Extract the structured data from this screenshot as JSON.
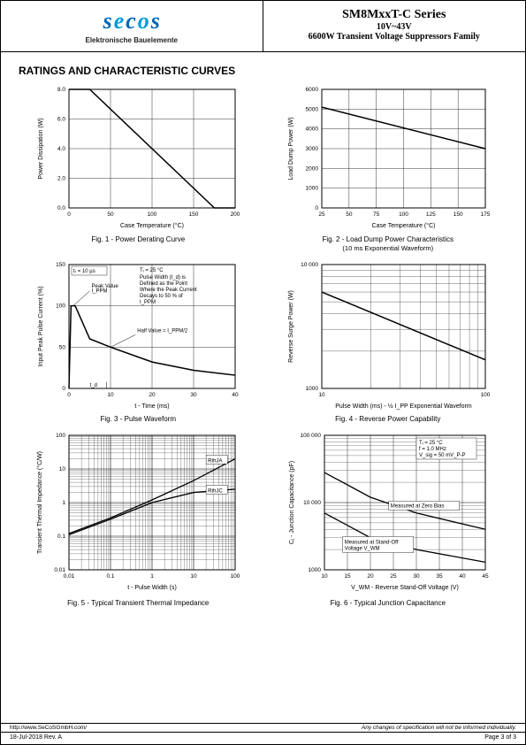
{
  "header": {
    "logo_text": "secos",
    "logo_subtitle": "Elektronische Bauelemente",
    "series_title": "SM8MxxT-C Series",
    "voltage_range": "10V~43V",
    "product_desc": "6600W Transient Voltage Suppressors Family"
  },
  "section_title": "RATINGS AND CHARACTERISTIC CURVES",
  "fig1": {
    "type": "line",
    "caption": "Fig. 1 - Power Derating Curve",
    "xlabel": "Case Temperature (°C)",
    "ylabel": "Power Dissipation (W)",
    "xlim": [
      0,
      200
    ],
    "xtick_step": 50,
    "ylim": [
      0,
      8
    ],
    "ytick_step": 2,
    "line": [
      [
        0,
        8
      ],
      [
        25,
        8
      ],
      [
        175,
        0
      ],
      [
        200,
        0
      ]
    ],
    "line_color": "#000",
    "line_width": 1.5,
    "grid_color": "#000",
    "background_color": "#fff"
  },
  "fig2": {
    "type": "line",
    "caption": "Fig. 2 - Load Dump Power Characteristics",
    "subcaption": "(10 ms Exponential Waveform)",
    "xlabel": "Case Temperature (°C)",
    "ylabel": "Load Dump Power (W)",
    "xlim": [
      25,
      175
    ],
    "xtick_step": 25,
    "ylim": [
      0,
      6000
    ],
    "ytick_step": 1000,
    "line": [
      [
        25,
        5100
      ],
      [
        175,
        3000
      ]
    ],
    "line_color": "#000",
    "line_width": 1.5,
    "grid_color": "#000"
  },
  "fig3": {
    "type": "line",
    "caption": "Fig. 3 - Pulse Waveform",
    "xlabel": "t - Time (ms)",
    "ylabel": "Input Peak Pulse Current (%)",
    "xlim": [
      0,
      40
    ],
    "xtick_step": 10,
    "ylim": [
      0,
      150
    ],
    "ytick_step": 50,
    "line": [
      [
        0,
        0
      ],
      [
        0.5,
        100
      ],
      [
        1.5,
        100
      ],
      [
        5,
        60
      ],
      [
        10,
        50
      ],
      [
        20,
        32
      ],
      [
        30,
        22
      ],
      [
        40,
        16
      ]
    ],
    "line_color": "#000",
    "line_width": 1.5,
    "annotations": {
      "tr": "tᵣ = 10 µs",
      "tj": "Tⱼ = 25 °C",
      "note": "Pulse Width (t_d) is Defined as the Point Where the Peak Current Decays to 50 % of I_PPM",
      "peak": "Peak Value I_PPM",
      "half": "Half Value = I_PPM/2",
      "td": "t_d"
    }
  },
  "fig4": {
    "type": "line",
    "caption": "Fig. 4 - Reverse Power Capability",
    "xlabel": "Pulse Width (ms) - ½ I_PP Exponential Waveform",
    "ylabel": "Reverse Surge Power (W)",
    "xlim_log": [
      10,
      100
    ],
    "ylim_log": [
      1000,
      10000
    ],
    "line": [
      [
        10,
        6000
      ],
      [
        100,
        1700
      ]
    ],
    "line_color": "#000",
    "line_width": 1.5,
    "scale": "log-log"
  },
  "fig5": {
    "type": "line",
    "caption": "Fig. 5 - Typical Transient Thermal Impedance",
    "xlabel": "t - Pulse Width (s)",
    "ylabel": "Transient Thermal Impedance (°C/W)",
    "xlim_log": [
      0.01,
      100
    ],
    "ylim_log": [
      0.01,
      100
    ],
    "scale": "log-log",
    "lines": [
      {
        "label": "RthJA",
        "data": [
          [
            0.01,
            0.12
          ],
          [
            0.1,
            0.35
          ],
          [
            1,
            1.2
          ],
          [
            10,
            4.5
          ],
          [
            100,
            20
          ]
        ]
      },
      {
        "label": "RthJC",
        "data": [
          [
            0.01,
            0.11
          ],
          [
            0.1,
            0.32
          ],
          [
            1,
            1.0
          ],
          [
            10,
            2.0
          ],
          [
            100,
            2.5
          ]
        ]
      }
    ],
    "line_color": "#000",
    "line_width": 1.3
  },
  "fig6": {
    "type": "line",
    "caption": "Fig. 6 - Typical Junction Capacitance",
    "xlabel": "V_WM - Reverse Stand-Off Voltage (V)",
    "ylabel": "Cⱼ - Junction Capacitance (pF)",
    "xlim": [
      10,
      45
    ],
    "xtick_step": 5,
    "ylim_log": [
      1000,
      100000
    ],
    "lines": [
      {
        "label": "Measured at Zero Bias",
        "data": [
          [
            10,
            28000
          ],
          [
            20,
            12000
          ],
          [
            30,
            7000
          ],
          [
            45,
            4000
          ]
        ]
      },
      {
        "label": "Measured at Stand-Off Voltage V_WM",
        "data": [
          [
            10,
            7000
          ],
          [
            20,
            3000
          ],
          [
            30,
            2000
          ],
          [
            45,
            1300
          ]
        ]
      }
    ],
    "annotations": {
      "cond": "Tⱼ = 25 °C\nf = 1.0 MHz\nV_sig = 50 mV_P-P"
    },
    "line_color": "#000",
    "line_width": 1.3
  },
  "footer": {
    "url": "http://www.SeCoSGmbH.com/",
    "disclaimer": "Any changes of specification will not be informed individually.",
    "date_rev": "18-Jul-2018 Rev. A",
    "page": "Page 3 of 3"
  }
}
